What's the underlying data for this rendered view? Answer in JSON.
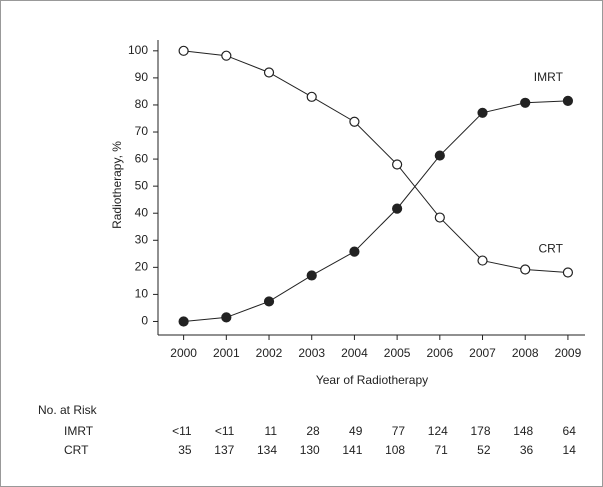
{
  "chart_data": {
    "type": "line",
    "y_label": "Radiotherapy, %",
    "x_label": "Year of Radiotherapy",
    "x": [
      2000,
      2001,
      2002,
      2003,
      2004,
      2005,
      2006,
      2007,
      2008,
      2009
    ],
    "xlim": [
      1999.4,
      2009.4
    ],
    "xticks": [
      2000,
      2001,
      2002,
      2003,
      2004,
      2005,
      2006,
      2007,
      2008,
      2009
    ],
    "ylim": [
      -5,
      104
    ],
    "yticks": [
      0,
      10,
      20,
      30,
      40,
      50,
      60,
      70,
      80,
      90,
      100
    ],
    "series": [
      {
        "name": "CRT",
        "color": "#222222",
        "marker_fill": "#ffffff",
        "values": [
          100,
          98.2,
          92,
          83,
          73.8,
          58,
          38.4,
          22.5,
          19.2,
          18.1
        ]
      },
      {
        "name": "IMRT",
        "color": "#222222",
        "marker_fill": "#222222",
        "values": [
          0,
          1.5,
          7.4,
          17,
          25.8,
          41.7,
          61.3,
          77.1,
          80.8,
          81.5
        ]
      }
    ]
  },
  "risk_table": {
    "title": "No. at Risk",
    "rows": [
      {
        "label": "IMRT",
        "values": [
          "<11",
          "<11",
          11,
          28,
          49,
          77,
          124,
          178,
          148,
          64
        ]
      },
      {
        "label": "CRT",
        "values": [
          35,
          137,
          134,
          130,
          141,
          108,
          71,
          52,
          36,
          14
        ]
      }
    ]
  }
}
